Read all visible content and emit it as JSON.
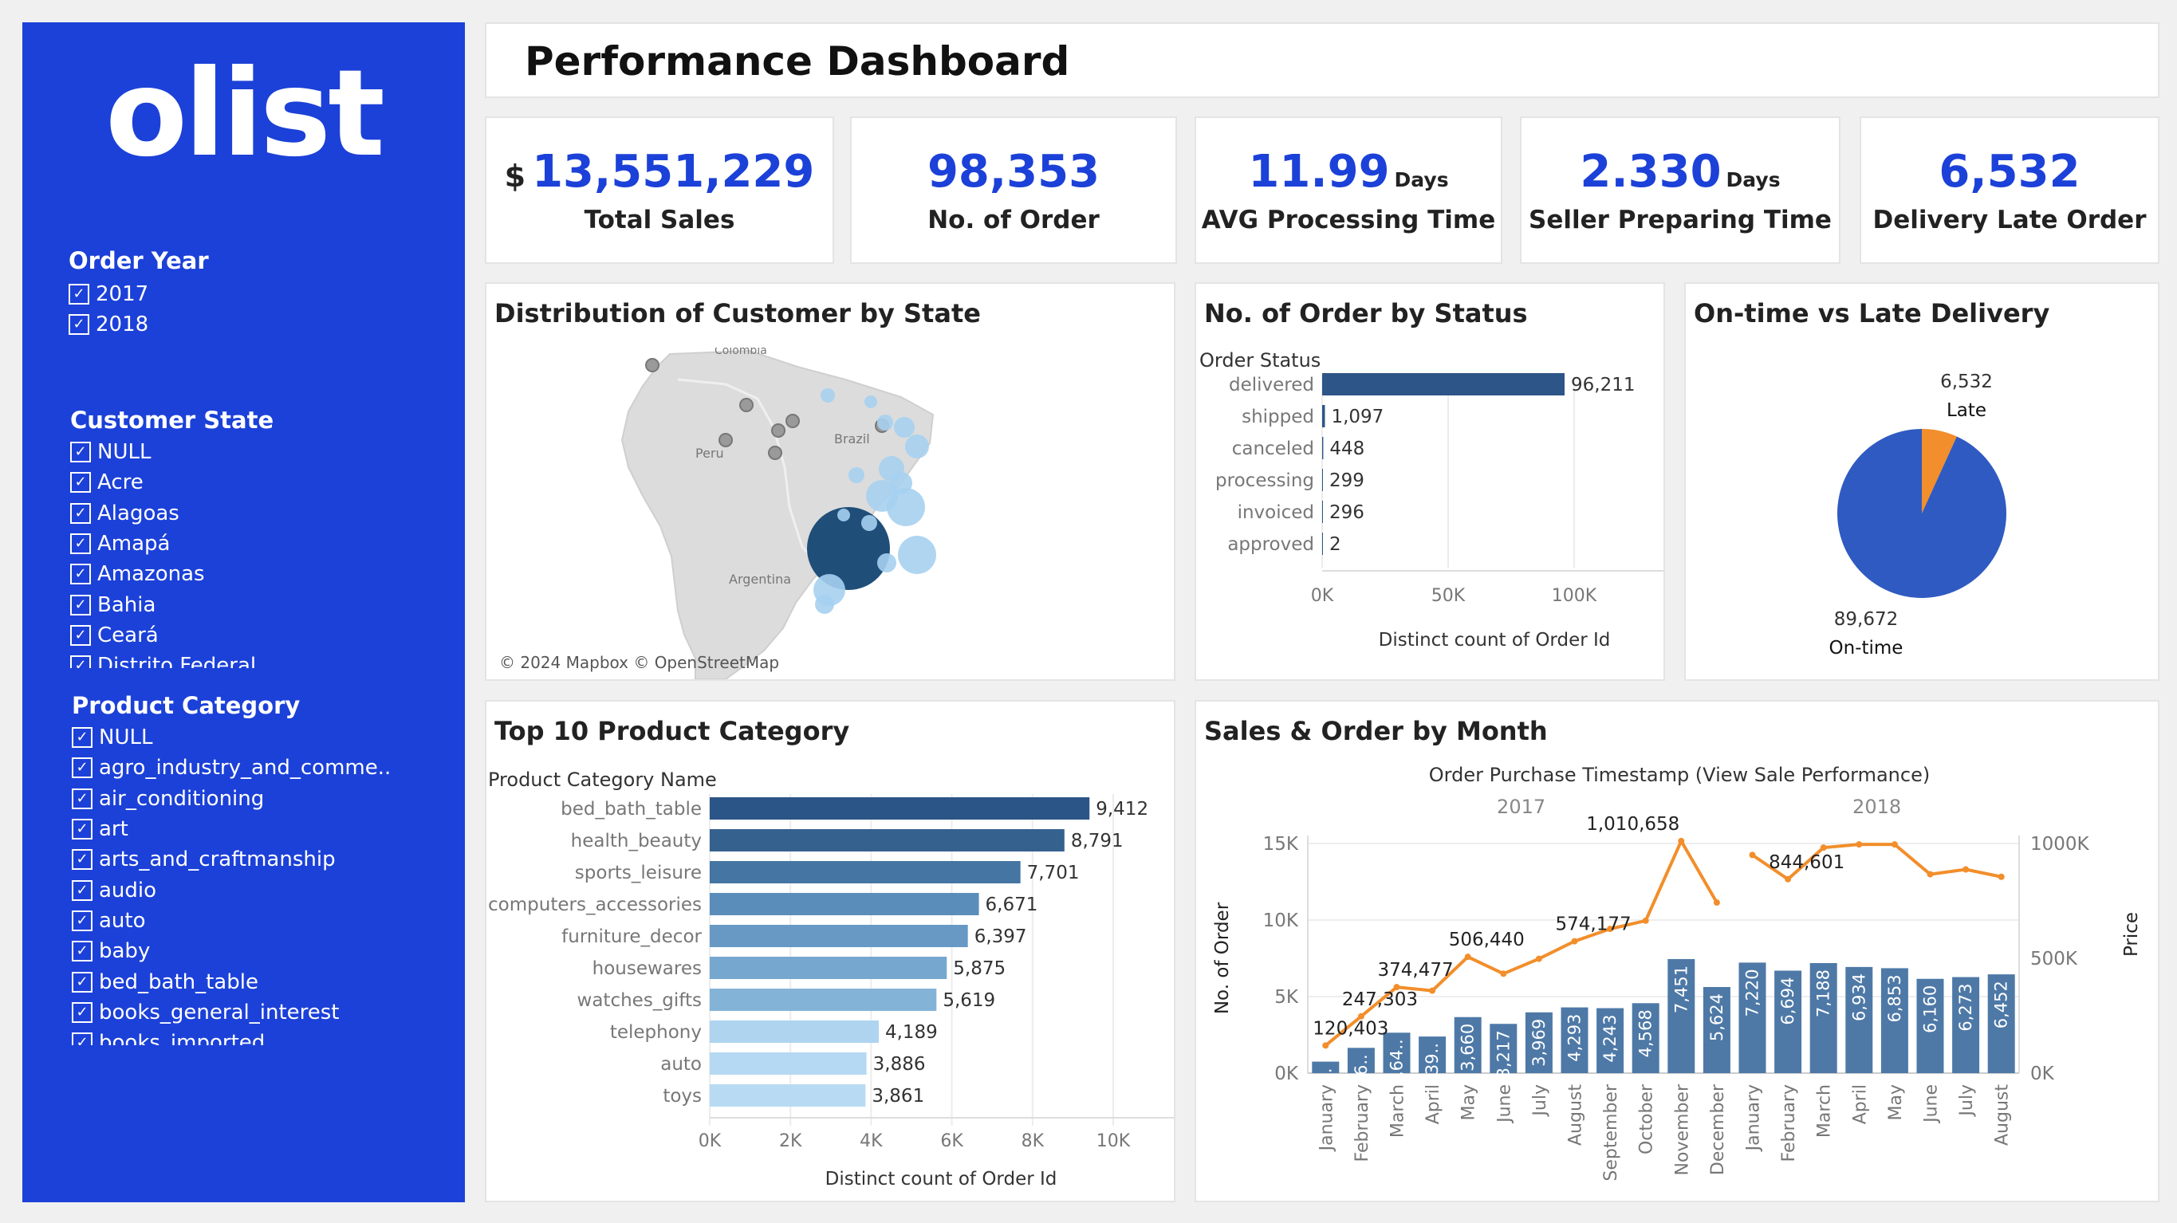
{
  "sidebar": {
    "logo": "olist",
    "order_year": {
      "title": "Order Year",
      "items": [
        "2017",
        "2018"
      ]
    },
    "customer_state": {
      "title": "Customer State",
      "items": [
        "NULL",
        "Acre",
        "Alagoas",
        "Amapá",
        "Amazonas",
        "Bahia",
        "Ceará",
        "Distrito Federal"
      ]
    },
    "product_category": {
      "title": "Product Category",
      "items": [
        "NULL",
        "agro_industry_and_comme..",
        "air_conditioning",
        "art",
        "arts_and_craftmanship",
        "audio",
        "auto",
        "baby",
        "bed_bath_table",
        "books_general_interest",
        "books_imported"
      ]
    },
    "check_glyph": "✓"
  },
  "header": {
    "title": "Performance Dashboard"
  },
  "kpis": [
    {
      "currency": "$",
      "value": "13,551,229",
      "unit": "",
      "label": "Total Sales"
    },
    {
      "currency": "",
      "value": "98,353",
      "unit": "",
      "label": "No. of Order"
    },
    {
      "currency": "",
      "value": "11.99",
      "unit": "Days",
      "label": "AVG Processing Time"
    },
    {
      "currency": "",
      "value": "2.330",
      "unit": "Days",
      "label": "Seller Preparing Time"
    },
    {
      "currency": "",
      "value": "6,532",
      "unit": "",
      "label": "Delivery Late Order"
    }
  ],
  "map_panel": {
    "title": "Distribution of Customer by State",
    "labels": {
      "colombia": "Colombia",
      "peru": "Peru",
      "brazil": "Brazil",
      "argentina": "Argentina"
    },
    "attribution": "© 2024 Mapbox © OpenStreetMap",
    "colors": {
      "land": "#dcdcdc",
      "dark_bubble": "#1f4e79",
      "light_bubble": "#a6d0ef",
      "gray_dot": "#9a9a9a"
    }
  },
  "status_panel": {
    "title": "No. of Order  by Status"
  },
  "delivery_panel": {
    "title": "On-time vs Late Delivery"
  },
  "category_panel": {
    "title": "Top 10 Product Category"
  },
  "month_panel": {
    "title": "Sales & Order by Month"
  },
  "chart_data": [
    {
      "type": "bar",
      "orientation": "horizontal",
      "title": "No. of Order  by Status",
      "category_header": "Order Status",
      "xlabel": "Distinct count of Order Id",
      "categories": [
        "delivered",
        "shipped",
        "canceled",
        "processing",
        "invoiced",
        "approved"
      ],
      "values": [
        96211,
        1097,
        448,
        299,
        296,
        2
      ],
      "value_labels": [
        "96,211",
        "1,097",
        "448",
        "299",
        "296",
        "2"
      ],
      "xticks": [
        "0K",
        "50K",
        "100K"
      ],
      "xlim": [
        0,
        100000
      ],
      "color": "#2d5587",
      "grid": true
    },
    {
      "type": "pie",
      "title": "On-time vs Late Delivery",
      "slices": [
        {
          "label": "Late",
          "value": 6532,
          "value_label": "6,532",
          "color": "#f28e2b"
        },
        {
          "label": "On-time",
          "value": 89672,
          "value_label": "89,672",
          "color": "#2f5ac1"
        }
      ]
    },
    {
      "type": "bar",
      "orientation": "horizontal",
      "title": "Top 10 Product Category",
      "category_header": "Product Category Name",
      "xlabel": "Distinct count of Order Id",
      "categories": [
        "bed_bath_table",
        "health_beauty",
        "sports_leisure",
        "computers_accessories",
        "furniture_decor",
        "housewares",
        "watches_gifts",
        "telephony",
        "auto",
        "toys"
      ],
      "values": [
        9412,
        8791,
        7701,
        6671,
        6397,
        5875,
        5619,
        4189,
        3886,
        3861
      ],
      "value_labels": [
        "9,412",
        "8,791",
        "7,701",
        "6,671",
        "6,397",
        "5,875",
        "5,619",
        "4,189",
        "3,886",
        "3,861"
      ],
      "colors": [
        "#2c5587",
        "#35618f",
        "#4475a3",
        "#5b8dba",
        "#6899c5",
        "#76a7cf",
        "#84b3d8",
        "#aed4ef",
        "#b5d9f2",
        "#b8dbf3"
      ],
      "xticks": [
        "0K",
        "2K",
        "4K",
        "6K",
        "8K",
        "10K"
      ],
      "xlim": [
        0,
        10000
      ],
      "grid": true
    },
    {
      "type": "bar+line",
      "title": "Sales & Order by Month",
      "header": "Order Purchase Timestamp (View Sale Performance)",
      "years": [
        "2017",
        "2018"
      ],
      "categories": [
        "January",
        "February",
        "March",
        "April",
        "May",
        "June",
        "July",
        "August",
        "September",
        "October",
        "November",
        "December",
        "January",
        "February",
        "March",
        "April",
        "May",
        "June",
        "July",
        "August"
      ],
      "ylabel": "No. of Order",
      "y2label": "Price",
      "ylim": [
        0,
        15000
      ],
      "y2lim": [
        0,
        1000000
      ],
      "yticks": [
        "0K",
        "5K",
        "10K",
        "15K"
      ],
      "y2ticks": [
        "0K",
        "500K",
        "1000K"
      ],
      "series": [
        {
          "name": "No. of Order",
          "kind": "bar",
          "color": "#4e79a7",
          "values": [
            750,
            1650,
            2640,
            2390,
            3660,
            3217,
            3969,
            4293,
            4243,
            4568,
            7451,
            5624,
            7220,
            6694,
            7188,
            6934,
            6853,
            6160,
            6273,
            6452
          ],
          "labels": [
            "7..",
            "1,6..",
            "2,64..",
            "2,39..",
            "3,660",
            "3,217",
            "3,969",
            "4,293",
            "4,243",
            "4,568",
            "7,451",
            "5,624",
            "7,220",
            "6,694",
            "7,188",
            "6,934",
            "6,853",
            "6,160",
            "6,273",
            "6,452"
          ]
        },
        {
          "name": "Price",
          "kind": "line",
          "color": "#f28e2b",
          "values": [
            120403,
            247303,
            374477,
            359000,
            506440,
            433000,
            498000,
            574177,
            628000,
            664000,
            1010658,
            743000,
            950000,
            844601,
            982000,
            996000,
            996000,
            866000,
            887000,
            855000
          ]
        }
      ],
      "annotations": [
        {
          "index": 0,
          "text": "120,403"
        },
        {
          "index": 1,
          "text": "247,303"
        },
        {
          "index": 2,
          "text": "374,477"
        },
        {
          "index": 4,
          "text": "506,440"
        },
        {
          "index": 7,
          "text": "574,177"
        },
        {
          "index": 10,
          "text": "1,010,658"
        },
        {
          "index": 13,
          "text": "844,601"
        }
      ]
    }
  ]
}
